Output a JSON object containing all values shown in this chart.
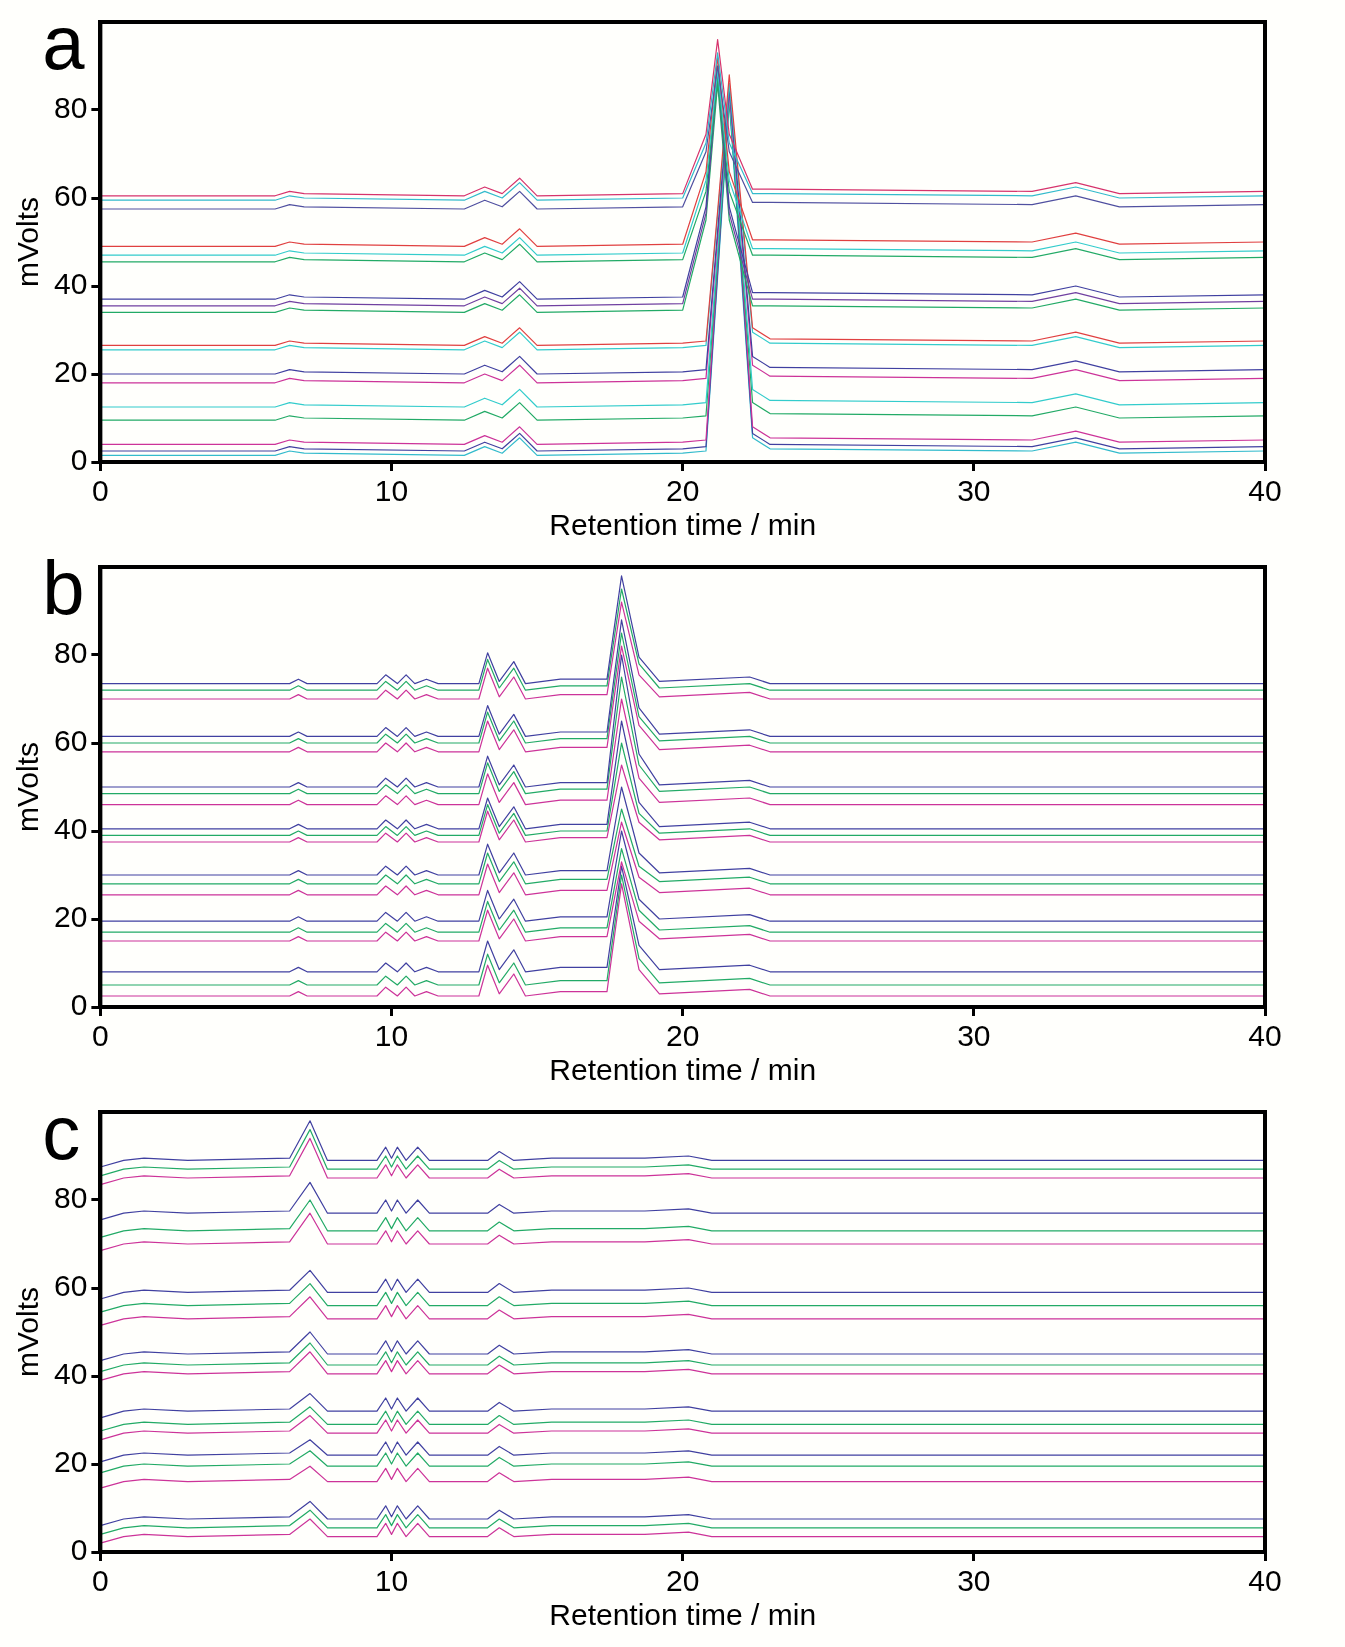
{
  "chart_data": [
    {
      "type": "line",
      "title": "a",
      "xlabel": "Retention time / min",
      "ylabel": "mVolts",
      "xlim": [
        0,
        40
      ],
      "ylim": [
        0,
        100
      ],
      "xticks": [
        0,
        10,
        20,
        30,
        40
      ],
      "yticks": [
        0,
        20,
        40,
        60,
        80
      ],
      "grid": false,
      "legend": false,
      "marker": "none",
      "line_style": "solid",
      "x": [
        0,
        6,
        6.5,
        7,
        12.5,
        13.2,
        13.8,
        14.4,
        15,
        20,
        20.8,
        21.2,
        21.6,
        22.4,
        23,
        32,
        33.5,
        35,
        40
      ],
      "series": [
        {
          "color": "#d6336c",
          "values": [
            60.5,
            60.5,
            61.5,
            61,
            60.5,
            62.5,
            61,
            64.5,
            60.5,
            61,
            74.5,
            96,
            74.5,
            62,
            62,
            61.5,
            63.5,
            61,
            61.5
          ]
        },
        {
          "color": "#33bbcc",
          "values": [
            59.5,
            59.5,
            60.5,
            60,
            59.5,
            61.5,
            60,
            63.5,
            59.5,
            60,
            72.5,
            93,
            72.5,
            61,
            61,
            60.5,
            62.5,
            60,
            60.5
          ]
        },
        {
          "color": "#5050a0",
          "values": [
            57.5,
            57.5,
            58.5,
            58,
            57.5,
            59.5,
            58,
            61.5,
            57.5,
            58,
            70.5,
            90,
            70.5,
            59,
            59,
            58.5,
            60.5,
            58,
            58.5
          ]
        },
        {
          "color": "#e04040",
          "values": [
            49,
            49,
            50,
            49.5,
            49,
            51,
            49.5,
            53,
            49,
            49.5,
            66,
            92,
            66,
            50.5,
            50.5,
            50,
            52,
            49.5,
            50
          ]
        },
        {
          "color": "#33cccc",
          "values": [
            47,
            47,
            48,
            47.5,
            47,
            49,
            47.5,
            51,
            47,
            47.5,
            64,
            89,
            64,
            48.5,
            48.5,
            48,
            50,
            47.5,
            48
          ]
        },
        {
          "color": "#22aa66",
          "values": [
            45.5,
            45.5,
            46.5,
            46,
            45.5,
            47.5,
            46,
            49.5,
            45.5,
            46,
            61.5,
            87,
            61.5,
            47,
            47,
            46.5,
            48.5,
            46,
            46.5
          ]
        },
        {
          "color": "#4040a0",
          "values": [
            37,
            37,
            38,
            37.5,
            37,
            39,
            37.5,
            41,
            37,
            37.5,
            58,
            90,
            58,
            38.5,
            38.5,
            38,
            40,
            37.5,
            38
          ]
        },
        {
          "color": "#7040a0",
          "values": [
            35.5,
            35.5,
            36.5,
            36,
            35.5,
            37.5,
            36,
            39.5,
            35.5,
            36,
            56.5,
            88,
            56.5,
            37,
            37,
            36.5,
            38.5,
            36,
            36.5
          ]
        },
        {
          "color": "#22aa66",
          "values": [
            34,
            34,
            35,
            34.5,
            34,
            36,
            34.5,
            38,
            34,
            34.5,
            55,
            86,
            55,
            35.5,
            35.5,
            35,
            37,
            34.5,
            35
          ]
        },
        {
          "color": "#e04040",
          "values": [
            26.5,
            26.5,
            27.5,
            27,
            26.5,
            28.5,
            27,
            30.5,
            26.5,
            27,
            27.5,
            57,
            88,
            30.5,
            28,
            27.5,
            29.5,
            27,
            27.5
          ]
        },
        {
          "color": "#33cccc",
          "values": [
            25.5,
            25.5,
            26.5,
            26,
            25.5,
            27.5,
            26,
            29.5,
            25.5,
            26,
            26.5,
            56,
            86,
            29.5,
            27,
            26.5,
            28.5,
            26,
            26.5
          ]
        },
        {
          "color": "#4040a0",
          "values": [
            20,
            20,
            21,
            20.5,
            20,
            22,
            20.5,
            24,
            20,
            20.5,
            21,
            52.5,
            85,
            24,
            21.5,
            21,
            23,
            20.5,
            21
          ]
        },
        {
          "color": "#cc3399",
          "values": [
            18,
            18,
            19,
            18.5,
            18,
            20,
            18.5,
            22,
            18,
            18.5,
            19,
            51,
            84,
            22,
            19.5,
            19,
            21,
            18.5,
            19
          ]
        },
        {
          "color": "#33cccc",
          "values": [
            12.5,
            12.5,
            13.5,
            13,
            12.5,
            14.5,
            13,
            16.5,
            12.5,
            13,
            13.5,
            48,
            83,
            16.5,
            14,
            13.5,
            15.5,
            13,
            13.5
          ]
        },
        {
          "color": "#22aa66",
          "values": [
            9.5,
            9.5,
            10.5,
            10,
            9.5,
            11.5,
            10,
            13.5,
            9.5,
            10,
            10.5,
            46,
            82,
            13.5,
            11,
            10.5,
            12.5,
            10,
            10.5
          ]
        },
        {
          "color": "#cc3399",
          "values": [
            4,
            4,
            5,
            4.5,
            4,
            6,
            4.5,
            8,
            4,
            4.5,
            5,
            45,
            86,
            8,
            5.5,
            5,
            7,
            4.5,
            5
          ]
        },
        {
          "color": "#4040a0",
          "values": [
            2.5,
            2.5,
            3.5,
            3,
            2.5,
            4.5,
            3,
            6.5,
            2.5,
            3,
            3.5,
            43,
            84,
            6.5,
            4,
            3.5,
            5.5,
            3,
            3.5
          ]
        },
        {
          "color": "#33bbcc",
          "values": [
            1.5,
            1.5,
            2.5,
            2,
            1.5,
            3.5,
            2,
            5.5,
            1.5,
            2,
            2.5,
            42,
            82,
            5.5,
            3,
            2.5,
            4.5,
            2,
            2.5
          ]
        }
      ]
    },
    {
      "type": "line",
      "title": "b",
      "xlabel": "Retention time / min",
      "ylabel": "mVolts",
      "xlim": [
        0,
        40
      ],
      "ylim": [
        0,
        100
      ],
      "xticks": [
        0,
        10,
        20,
        30,
        40
      ],
      "yticks": [
        0,
        20,
        40,
        60,
        80
      ],
      "grid": false,
      "legend": false,
      "marker": "none",
      "line_style": "solid",
      "x": [
        0,
        6.5,
        6.8,
        7.1,
        9.5,
        9.8,
        10.2,
        10.5,
        10.8,
        11.2,
        11.6,
        13,
        13.3,
        13.7,
        14.2,
        14.6,
        15.8,
        17.4,
        17.9,
        18.5,
        19.2,
        22.3,
        23,
        40
      ],
      "series": [
        {
          "color": "#4040a0",
          "values": [
            73.5,
            73.5,
            74.5,
            73.5,
            73.5,
            75.5,
            73.5,
            75.5,
            73.5,
            74.5,
            73.5,
            73.5,
            80.5,
            74,
            78.5,
            73.5,
            74.5,
            74.5,
            98,
            79.5,
            74,
            75,
            73.5,
            73.5
          ]
        },
        {
          "color": "#22aa66",
          "values": [
            72,
            72,
            73,
            72,
            72,
            74,
            72,
            74,
            72,
            73,
            72,
            72,
            79,
            72.5,
            77,
            72,
            73,
            73,
            95,
            78,
            72.5,
            73.5,
            72,
            72
          ]
        },
        {
          "color": "#cc3399",
          "values": [
            70,
            70,
            71,
            70,
            70,
            72,
            70,
            72,
            70,
            71,
            70,
            70,
            77,
            70.5,
            75,
            70,
            71,
            71,
            92,
            75.5,
            70.5,
            71.5,
            70,
            70
          ]
        },
        {
          "color": "#4040a0",
          "values": [
            61.5,
            61.5,
            62.5,
            61.5,
            61.5,
            63.5,
            61.5,
            63.5,
            61.5,
            62.5,
            61.5,
            61.5,
            68.5,
            62,
            66.5,
            61.5,
            62.5,
            62.5,
            88,
            68,
            62,
            63,
            61.5,
            61.5
          ]
        },
        {
          "color": "#22aa66",
          "values": [
            60,
            60,
            61,
            60,
            60,
            62,
            60,
            62,
            60,
            61,
            60,
            60,
            67,
            60.5,
            65,
            60,
            61,
            61,
            85,
            66,
            60.5,
            61.5,
            60,
            60
          ]
        },
        {
          "color": "#cc3399",
          "values": [
            58,
            58,
            59,
            58,
            58,
            60,
            58,
            60,
            58,
            59,
            58,
            58,
            65,
            58.5,
            63,
            58,
            59,
            59,
            82,
            64,
            58.5,
            59.5,
            58,
            58
          ]
        },
        {
          "color": "#4040a0",
          "values": [
            50,
            50,
            51,
            50,
            50,
            52,
            50,
            52,
            50,
            51,
            50,
            50,
            57,
            50.5,
            55,
            50,
            51,
            51,
            80,
            57.5,
            50.5,
            51.5,
            50,
            50
          ]
        },
        {
          "color": "#22aa66",
          "values": [
            48.5,
            48.5,
            49.5,
            48.5,
            48.5,
            50.5,
            48.5,
            50.5,
            48.5,
            49.5,
            48.5,
            48.5,
            55.5,
            49,
            53.5,
            48.5,
            49.5,
            49.5,
            75,
            55,
            49,
            50,
            48.5,
            48.5
          ]
        },
        {
          "color": "#cc3399",
          "values": [
            46,
            46,
            47,
            46,
            46,
            48,
            46,
            48,
            46,
            47,
            46,
            46,
            53,
            46.5,
            51,
            46,
            47,
            47,
            70,
            52,
            46.5,
            47.5,
            46,
            46
          ]
        },
        {
          "color": "#4040a0",
          "values": [
            40.5,
            40.5,
            41.5,
            40.5,
            40.5,
            42.5,
            40.5,
            42.5,
            40.5,
            41.5,
            40.5,
            40.5,
            47.5,
            41,
            45.5,
            40.5,
            41.5,
            41.5,
            65,
            46.5,
            41,
            42,
            40.5,
            40.5
          ]
        },
        {
          "color": "#22aa66",
          "values": [
            39,
            39,
            40,
            39,
            39,
            41,
            39,
            41,
            39,
            40,
            39,
            39,
            46,
            39.5,
            44,
            39,
            40,
            40,
            60,
            44,
            39.5,
            40.5,
            39,
            39
          ]
        },
        {
          "color": "#cc3399",
          "values": [
            37.5,
            37.5,
            38.5,
            37.5,
            37.5,
            39.5,
            37.5,
            39.5,
            37.5,
            38.5,
            37.5,
            37.5,
            44.5,
            38,
            42.5,
            37.5,
            38.5,
            38.5,
            55,
            42,
            38,
            39,
            37.5,
            37.5
          ]
        },
        {
          "color": "#4040a0",
          "values": [
            30,
            30,
            31,
            30,
            30,
            32,
            30,
            32,
            30,
            31,
            30,
            30,
            37,
            30.5,
            35,
            30,
            31,
            31,
            50,
            35,
            30.5,
            31.5,
            30,
            30
          ]
        },
        {
          "color": "#22aa66",
          "values": [
            28,
            28,
            29,
            28,
            28,
            30,
            28,
            30,
            28,
            29,
            28,
            28,
            35,
            28.5,
            33,
            28,
            29,
            29,
            45,
            32,
            28.5,
            29.5,
            28,
            28
          ]
        },
        {
          "color": "#cc3399",
          "values": [
            25.5,
            25.5,
            26.5,
            25.5,
            25.5,
            27.5,
            25.5,
            27.5,
            25.5,
            26.5,
            25.5,
            25.5,
            32.5,
            26,
            30.5,
            25.5,
            26.5,
            26.5,
            42,
            29.5,
            26,
            27,
            25.5,
            25.5
          ]
        },
        {
          "color": "#4040a0",
          "values": [
            19.5,
            19.5,
            20.5,
            19.5,
            19.5,
            21.5,
            19.5,
            21.5,
            19.5,
            20.5,
            19.5,
            19.5,
            26.5,
            20,
            24.5,
            19.5,
            20.5,
            20.5,
            40,
            24.5,
            20,
            21,
            19.5,
            19.5
          ]
        },
        {
          "color": "#22aa66",
          "values": [
            17,
            17,
            18,
            17,
            17,
            19,
            17,
            19,
            17,
            18,
            17,
            17,
            24,
            17.5,
            22,
            17,
            18,
            18,
            36,
            22,
            17.5,
            18.5,
            17,
            17
          ]
        },
        {
          "color": "#cc3399",
          "values": [
            15,
            15,
            16,
            15,
            15,
            17,
            15,
            17,
            15,
            16,
            15,
            15,
            22,
            15.5,
            20,
            15,
            16,
            16,
            33,
            19.5,
            15.5,
            16.5,
            15,
            15
          ]
        },
        {
          "color": "#4040a0",
          "values": [
            8,
            8,
            9,
            8,
            8,
            10,
            8,
            10,
            8,
            9,
            8,
            8,
            15,
            8.5,
            13,
            8,
            9,
            9,
            32,
            14,
            8.5,
            9.5,
            8,
            8
          ]
        },
        {
          "color": "#22aa66",
          "values": [
            5,
            5,
            6,
            5,
            5,
            7,
            5,
            7,
            5,
            6,
            5,
            5,
            12,
            5.5,
            10,
            5,
            6,
            6,
            30,
            11,
            5.5,
            6.5,
            5,
            5
          ]
        },
        {
          "color": "#cc3399",
          "values": [
            2.5,
            2.5,
            3.5,
            2.5,
            2.5,
            4.5,
            2.5,
            4.5,
            2.5,
            3.5,
            2.5,
            2.5,
            9.5,
            3,
            7.5,
            2.5,
            3.5,
            3.5,
            28,
            8.5,
            3,
            4,
            2.5,
            2.5
          ]
        }
      ]
    },
    {
      "type": "line",
      "title": "c",
      "xlabel": "Retention time / min",
      "ylabel": "mVolts",
      "xlim": [
        0,
        40
      ],
      "ylim": [
        0,
        100
      ],
      "xticks": [
        0,
        10,
        20,
        30,
        40
      ],
      "yticks": [
        0,
        20,
        40,
        60,
        80
      ],
      "grid": false,
      "legend": false,
      "marker": "none",
      "line_style": "solid",
      "x": [
        0,
        0.8,
        1.5,
        3,
        6.5,
        7.2,
        7.8,
        9.5,
        9.8,
        10,
        10.2,
        10.5,
        10.9,
        11.3,
        13.3,
        13.7,
        14.2,
        15.5,
        18.7,
        20.2,
        21,
        40
      ],
      "series": [
        {
          "color": "#4040a0",
          "values": [
            87.5,
            89,
            89.5,
            89,
            89.5,
            98,
            89,
            89,
            92,
            89.5,
            92,
            89,
            92,
            89,
            89,
            91,
            89,
            89.5,
            89.5,
            90,
            89,
            89
          ]
        },
        {
          "color": "#22aa66",
          "values": [
            85.5,
            87,
            87.5,
            87,
            87.5,
            96,
            87,
            87,
            90,
            87.5,
            90,
            87,
            90,
            87,
            87,
            89,
            87,
            87.5,
            87.5,
            88,
            87,
            87
          ]
        },
        {
          "color": "#cc3399",
          "values": [
            83.5,
            85,
            85.5,
            85,
            85.5,
            94,
            85,
            85,
            88,
            85.5,
            88,
            85,
            88,
            85,
            85,
            87,
            85,
            85.5,
            85.5,
            86,
            85,
            85
          ]
        },
        {
          "color": "#4040a0",
          "values": [
            75.5,
            77,
            77.5,
            77,
            77.5,
            84,
            77,
            77,
            80,
            77.5,
            80,
            77,
            80,
            77,
            77,
            79,
            77,
            77.5,
            77.5,
            78,
            77,
            77
          ]
        },
        {
          "color": "#22aa66",
          "values": [
            71.5,
            73,
            73.5,
            73,
            73.5,
            80,
            73,
            73,
            76,
            73.5,
            76,
            73,
            76,
            73,
            73,
            75,
            73,
            73.5,
            73.5,
            74,
            73,
            73
          ]
        },
        {
          "color": "#cc3399",
          "values": [
            68.5,
            70,
            70.5,
            70,
            70.5,
            77,
            70,
            70,
            73,
            70.5,
            73,
            70,
            73,
            70,
            70,
            72,
            70,
            70.5,
            70.5,
            71,
            70,
            70
          ]
        },
        {
          "color": "#4040a0",
          "values": [
            57.5,
            59,
            59.5,
            59,
            59.5,
            64,
            59,
            59,
            62,
            59.5,
            62,
            59,
            62,
            59,
            59,
            61,
            59,
            59.5,
            59.5,
            60,
            59,
            59
          ]
        },
        {
          "color": "#22aa66",
          "values": [
            54.5,
            56,
            56.5,
            56,
            56.5,
            61,
            56,
            56,
            59,
            56.5,
            59,
            56,
            59,
            56,
            56,
            58,
            56,
            56.5,
            56.5,
            57,
            56,
            56
          ]
        },
        {
          "color": "#cc3399",
          "values": [
            51.5,
            53,
            53.5,
            53,
            53.5,
            58,
            53,
            53,
            56,
            53.5,
            56,
            53,
            56,
            53,
            53,
            55,
            53,
            53.5,
            53.5,
            54,
            53,
            53
          ]
        },
        {
          "color": "#4040a0",
          "values": [
            43.5,
            45,
            45.5,
            45,
            45.5,
            50,
            45,
            45,
            48,
            45.5,
            48,
            45,
            48,
            45,
            45,
            47,
            45,
            45.5,
            45.5,
            46,
            45,
            45
          ]
        },
        {
          "color": "#22aa66",
          "values": [
            41,
            42.5,
            43,
            42.5,
            43,
            47.5,
            42.5,
            42.5,
            45.5,
            43,
            45.5,
            42.5,
            45.5,
            42.5,
            42.5,
            44.5,
            42.5,
            43,
            43,
            43.5,
            42.5,
            42.5
          ]
        },
        {
          "color": "#cc3399",
          "values": [
            39,
            40.5,
            41,
            40.5,
            41,
            45.5,
            40.5,
            40.5,
            43.5,
            41,
            43.5,
            40.5,
            43.5,
            40.5,
            40.5,
            42.5,
            40.5,
            41,
            41,
            41.5,
            40.5,
            40.5
          ]
        },
        {
          "color": "#4040a0",
          "values": [
            30.5,
            32,
            32.5,
            32,
            32.5,
            36,
            32,
            32,
            35,
            32.5,
            35,
            32,
            35,
            32,
            32,
            34,
            32,
            32.5,
            32.5,
            33,
            32,
            32
          ]
        },
        {
          "color": "#22aa66",
          "values": [
            27.5,
            29,
            29.5,
            29,
            29.5,
            33,
            29,
            29,
            32,
            29.5,
            32,
            29,
            32,
            29,
            29,
            31,
            29,
            29.5,
            29.5,
            30,
            29,
            29
          ]
        },
        {
          "color": "#cc3399",
          "values": [
            25.5,
            27,
            27.5,
            27,
            27.5,
            31,
            27,
            27,
            30,
            27.5,
            30,
            27,
            30,
            27,
            27,
            29,
            27,
            27.5,
            27.5,
            28,
            27,
            27
          ]
        },
        {
          "color": "#4040a0",
          "values": [
            20.5,
            22,
            22.5,
            22,
            22.5,
            25.5,
            22,
            22,
            25,
            22.5,
            25,
            22,
            25,
            22,
            22,
            24,
            22,
            22.5,
            22.5,
            23,
            22,
            22
          ]
        },
        {
          "color": "#22aa66",
          "values": [
            18,
            19.5,
            20,
            19.5,
            20,
            23,
            19.5,
            19.5,
            22.5,
            20,
            22.5,
            19.5,
            22.5,
            19.5,
            19.5,
            21.5,
            19.5,
            20,
            20,
            20.5,
            19.5,
            19.5
          ]
        },
        {
          "color": "#cc3399",
          "values": [
            14.5,
            16,
            16.5,
            16,
            16.5,
            19.5,
            16,
            16,
            19,
            16.5,
            19,
            16,
            19,
            16,
            16,
            18,
            16,
            16.5,
            16.5,
            17,
            16,
            16
          ]
        },
        {
          "color": "#4040a0",
          "values": [
            6,
            7.5,
            8,
            7.5,
            8,
            11.5,
            7.5,
            7.5,
            10.5,
            8,
            10.5,
            7.5,
            10.5,
            7.5,
            7.5,
            9.5,
            7.5,
            8,
            8,
            8.5,
            7.5,
            7.5
          ]
        },
        {
          "color": "#22aa66",
          "values": [
            4,
            5.5,
            6,
            5.5,
            6,
            9.5,
            5.5,
            5.5,
            8.5,
            6,
            8.5,
            5.5,
            8.5,
            5.5,
            5.5,
            7.5,
            5.5,
            6,
            6,
            6.5,
            5.5,
            5.5
          ]
        },
        {
          "color": "#cc3399",
          "values": [
            2,
            3.5,
            4,
            3.5,
            4,
            7.5,
            3.5,
            3.5,
            6.5,
            4,
            6.5,
            3.5,
            6.5,
            3.5,
            3.5,
            5.5,
            3.5,
            4,
            4,
            4.5,
            3.5,
            3.5
          ]
        }
      ]
    }
  ]
}
